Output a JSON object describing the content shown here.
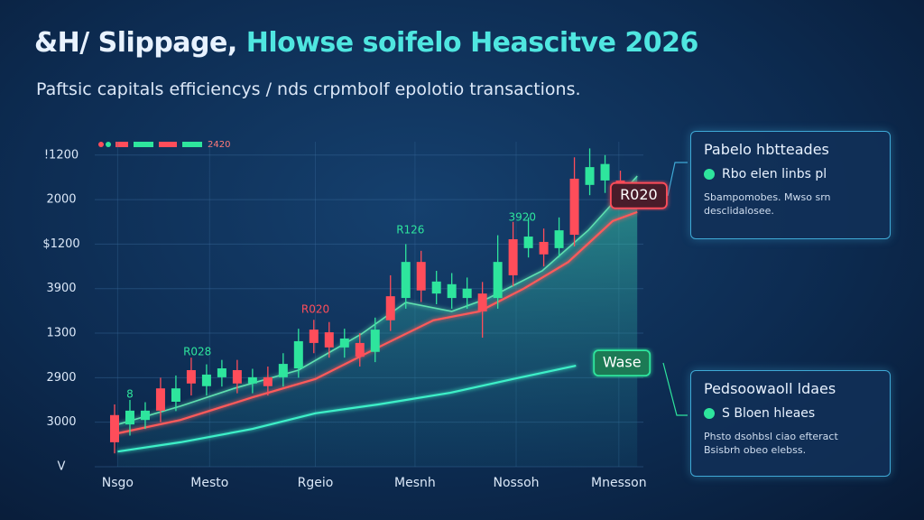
{
  "chart_data": {
    "type": "candlestick",
    "title": "&H/ Slippage,",
    "title_highlight": "Hlowse soifelo Heascitve 2026",
    "subtitle": "Paftsic capitals efficiencys / nds crpmbolf epolotio transactions.",
    "legend": "2420",
    "up_color": "#2ee59d",
    "down_color": "#ff4d5a",
    "grid": true,
    "xlim": [
      -1,
      34.5
    ],
    "ylim": [
      0,
      7.3
    ],
    "xticks": [
      {
        "value": 0.2,
        "label": "Nsgo"
      },
      {
        "value": 6.2,
        "label": "Mesto"
      },
      {
        "value": 13.1,
        "label": "Rgeio"
      },
      {
        "value": 19.6,
        "label": "Mesnh"
      },
      {
        "value": 26.2,
        "label": "Nossoh"
      },
      {
        "value": 32.9,
        "label": "Mnesson"
      }
    ],
    "yticks": [
      {
        "value": 0,
        "label": "V"
      },
      {
        "value": 1,
        "label": "3000"
      },
      {
        "value": 2,
        "label": "2900"
      },
      {
        "value": 3,
        "label": "1300"
      },
      {
        "value": 4,
        "label": "3900"
      },
      {
        "value": 5,
        "label": "$1200"
      },
      {
        "value": 6,
        "label": "2000"
      },
      {
        "value": 7,
        "label": "!1200"
      }
    ],
    "candles": [
      {
        "x": 0,
        "open": 1.16,
        "high": 1.4,
        "low": 0.3,
        "close": 0.55
      },
      {
        "x": 1,
        "open": 0.95,
        "high": 1.5,
        "low": 0.7,
        "close": 1.26
      },
      {
        "x": 2,
        "open": 1.05,
        "high": 1.45,
        "low": 0.85,
        "close": 1.26
      },
      {
        "x": 3,
        "open": 1.76,
        "high": 2.0,
        "low": 1.0,
        "close": 1.26
      },
      {
        "x": 4,
        "open": 1.46,
        "high": 2.05,
        "low": 1.25,
        "close": 1.76
      },
      {
        "x": 5,
        "open": 2.17,
        "high": 2.45,
        "low": 1.6,
        "close": 1.87
      },
      {
        "x": 6,
        "open": 1.81,
        "high": 2.3,
        "low": 1.6,
        "close": 2.07
      },
      {
        "x": 7,
        "open": 2.01,
        "high": 2.4,
        "low": 1.8,
        "close": 2.21
      },
      {
        "x": 8,
        "open": 2.17,
        "high": 2.4,
        "low": 1.65,
        "close": 1.87
      },
      {
        "x": 9,
        "open": 1.87,
        "high": 2.2,
        "low": 1.65,
        "close": 2.01
      },
      {
        "x": 10,
        "open": 2.01,
        "high": 2.25,
        "low": 1.6,
        "close": 1.81
      },
      {
        "x": 11,
        "open": 2.01,
        "high": 2.55,
        "low": 1.8,
        "close": 2.31
      },
      {
        "x": 12,
        "open": 2.21,
        "high": 3.1,
        "low": 2.0,
        "close": 2.82
      },
      {
        "x": 13,
        "open": 3.08,
        "high": 3.3,
        "low": 2.55,
        "close": 2.78
      },
      {
        "x": 14,
        "open": 3.02,
        "high": 3.25,
        "low": 2.45,
        "close": 2.68
      },
      {
        "x": 15,
        "open": 2.68,
        "high": 3.1,
        "low": 2.45,
        "close": 2.88
      },
      {
        "x": 16,
        "open": 2.78,
        "high": 3.0,
        "low": 2.25,
        "close": 2.47
      },
      {
        "x": 17,
        "open": 2.58,
        "high": 3.35,
        "low": 2.35,
        "close": 3.08
      },
      {
        "x": 18,
        "open": 3.83,
        "high": 4.3,
        "low": 3.05,
        "close": 3.29
      },
      {
        "x": 19,
        "open": 3.79,
        "high": 5.0,
        "low": 3.55,
        "close": 4.6
      },
      {
        "x": 20,
        "open": 4.6,
        "high": 4.85,
        "low": 3.7,
        "close": 3.96
      },
      {
        "x": 21,
        "open": 3.89,
        "high": 4.4,
        "low": 3.65,
        "close": 4.16
      },
      {
        "x": 22,
        "open": 3.79,
        "high": 4.35,
        "low": 3.55,
        "close": 4.1
      },
      {
        "x": 23,
        "open": 3.79,
        "high": 4.25,
        "low": 3.55,
        "close": 4.0
      },
      {
        "x": 24,
        "open": 3.89,
        "high": 4.15,
        "low": 2.9,
        "close": 3.49
      },
      {
        "x": 25,
        "open": 3.79,
        "high": 5.2,
        "low": 3.55,
        "close": 4.6
      },
      {
        "x": 26,
        "open": 5.11,
        "high": 5.5,
        "low": 4.05,
        "close": 4.3
      },
      {
        "x": 27,
        "open": 4.91,
        "high": 5.6,
        "low": 4.7,
        "close": 5.17
      },
      {
        "x": 28,
        "open": 5.05,
        "high": 5.35,
        "low": 4.5,
        "close": 4.77
      },
      {
        "x": 29,
        "open": 4.91,
        "high": 5.6,
        "low": 4.7,
        "close": 5.31
      },
      {
        "x": 30,
        "open": 6.47,
        "high": 6.95,
        "low": 4.95,
        "close": 5.21
      },
      {
        "x": 31,
        "open": 6.33,
        "high": 7.15,
        "low": 6.1,
        "close": 6.73
      },
      {
        "x": 32,
        "open": 6.43,
        "high": 7.0,
        "low": 6.15,
        "close": 6.8
      },
      {
        "x": 33,
        "open": 6.43,
        "high": 6.65,
        "low": 5.85,
        "close": 6.06
      }
    ],
    "series": [
      {
        "color": "#5fe0b0",
        "fill": true,
        "x": [
          0.2,
          4.3,
          7.8,
          12,
          16.1,
          19,
          22,
          24.4,
          27.9,
          30.9,
          34.1
        ],
        "values": [
          0.95,
          1.36,
          1.76,
          2.17,
          2.98,
          3.69,
          3.49,
          3.79,
          4.4,
          5.31,
          6.53
        ]
      },
      {
        "color": "#ff5a5a",
        "fill": false,
        "x": [
          0.2,
          4.3,
          9,
          13.1,
          17.2,
          20.8,
          23.8,
          26.7,
          29.6,
          32.5,
          34.1
        ],
        "values": [
          0.75,
          1.05,
          1.56,
          1.97,
          2.68,
          3.29,
          3.49,
          4.0,
          4.6,
          5.52,
          5.72
        ]
      },
      {
        "color": "#3ef0c8",
        "fill": false,
        "x": [
          0.2,
          4.3,
          9,
          13.1,
          17.2,
          21.9,
          26,
          30.1
        ],
        "values": [
          0.34,
          0.55,
          0.85,
          1.2,
          1.4,
          1.66,
          1.97,
          2.27
        ]
      }
    ],
    "annotations": [
      {
        "text": "8",
        "x": 1,
        "y": 1.62,
        "color": "#2ee59d",
        "style": "plain"
      },
      {
        "text": "R028",
        "x": 5.4,
        "y": 2.58,
        "color": "#2ee59d",
        "style": "plain"
      },
      {
        "text": "R020",
        "x": 13.1,
        "y": 3.53,
        "color": "#ff4d5a",
        "style": "plain"
      },
      {
        "text": "R126",
        "x": 19.3,
        "y": 5.31,
        "color": "#2ee59d",
        "style": "plain"
      },
      {
        "text": "3920",
        "x": 26.6,
        "y": 5.6,
        "color": "#2ee59d",
        "style": "plain"
      },
      {
        "text": "R020",
        "x": 34.2,
        "y": 6.09,
        "color": "#ff4d5a",
        "style": "box"
      },
      {
        "text": "Wase",
        "x": 33.1,
        "y": 2.33,
        "color": "#2ee59d",
        "style": "box"
      }
    ]
  },
  "panels": [
    {
      "title": "Pabelo hbtteades",
      "item": "Rbo elen linbs pl",
      "text": "Sbampomobes. Mwso srn desclidalosee."
    },
    {
      "title": "Pedsoowaoll ldaes",
      "item": "S Bloen hleaes",
      "text": "Phsto dsohbsl ciao efteract Bsisbrh obeo elebss."
    }
  ]
}
